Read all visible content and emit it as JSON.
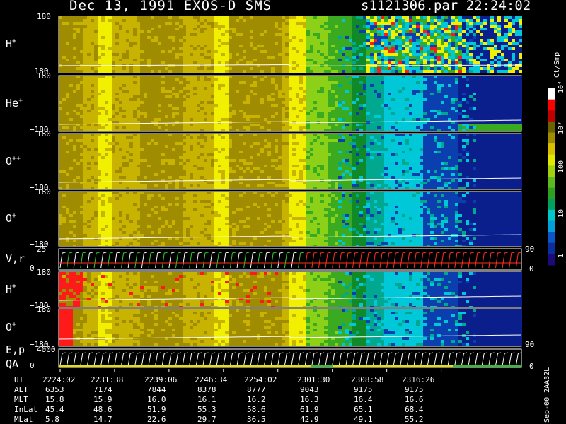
{
  "header": {
    "title": "Dec 13, 1991    EXOS-D SMS",
    "file_time": "s1121306.par  22:24:02"
  },
  "chart_data": {
    "type": "heatmap",
    "colorscale": [
      "#1a0a7a",
      "#0a2f9a",
      "#0a55c8",
      "#00a0d8",
      "#00c8c8",
      "#00a060",
      "#2fa020",
      "#60b820",
      "#a0d010",
      "#e0e800",
      "#d8c000",
      "#a08c00",
      "#6a6400",
      "#c00000",
      "#ff0000",
      "#ffffff"
    ],
    "colorbar": {
      "unit": "Ct/Smp",
      "tick_labels": [
        "1",
        "10",
        "100",
        "10³",
        "10⁴"
      ]
    },
    "panels": [
      {
        "label": "H",
        "sup": "+",
        "ytop": "180",
        "ybottom": "−180",
        "regime": "Hmain"
      },
      {
        "label": "He",
        "sup": "+",
        "ytop": "180",
        "ybottom": "−180",
        "regime": "He"
      },
      {
        "label": "O",
        "sup": "++",
        "ytop": "180",
        "ybottom": "−180",
        "regime": "O2"
      },
      {
        "label": "O",
        "sup": "+",
        "ytop": "180",
        "ybottom": "−180",
        "regime": "O1"
      },
      {
        "label": "V,r",
        "sup": "",
        "ytop": "25",
        "ybottom": "0",
        "right_top": "90",
        "right_bottom": "0",
        "regime": "vr"
      },
      {
        "label": "H",
        "sup": "+",
        "ytop": "180",
        "ybottom": "−180",
        "regime": "H2"
      },
      {
        "label": "O",
        "sup": "+",
        "ytop": "180",
        "ybottom": "−180",
        "right_label": "90",
        "regime": "O3"
      },
      {
        "label": "E,p",
        "label2": "QA",
        "sup": "",
        "ytop": "4000",
        "ybottom": "0",
        "right_bottom": "0",
        "regime": "ep"
      }
    ],
    "time_axis": {
      "row_labels": [
        "UT",
        "ALT",
        "MLT",
        "InLat",
        "MLat"
      ],
      "columns": [
        {
          "UT": "2224:02",
          "ALT": "6353",
          "MLT": "15.8",
          "InLat": "45.4",
          "MLat": "5.8"
        },
        {
          "UT": "2231:38",
          "ALT": "7174",
          "MLT": "15.9",
          "InLat": "48.6",
          "MLat": "14.7"
        },
        {
          "UT": "2239:06",
          "ALT": "7844",
          "MLT": "16.0",
          "InLat": "51.9",
          "MLat": "22.6"
        },
        {
          "UT": "2246:34",
          "ALT": "8378",
          "MLT": "16.1",
          "InLat": "55.3",
          "MLat": "29.7"
        },
        {
          "UT": "2254:02",
          "ALT": "8777",
          "MLT": "16.2",
          "InLat": "58.6",
          "MLat": "36.5"
        },
        {
          "UT": "2301:30",
          "ALT": "9043",
          "MLT": "16.3",
          "InLat": "61.9",
          "MLat": "42.9"
        },
        {
          "UT": "2308:58",
          "ALT": "9175",
          "MLT": "16.4",
          "InLat": "65.1",
          "MLat": "49.1"
        },
        {
          "UT": "2316:26",
          "ALT": "9175",
          "MLT": "16.6",
          "InLat": "68.4",
          "MLat": "55.2"
        }
      ]
    }
  },
  "footer": {
    "note": "Sep-00  2AA32L"
  }
}
